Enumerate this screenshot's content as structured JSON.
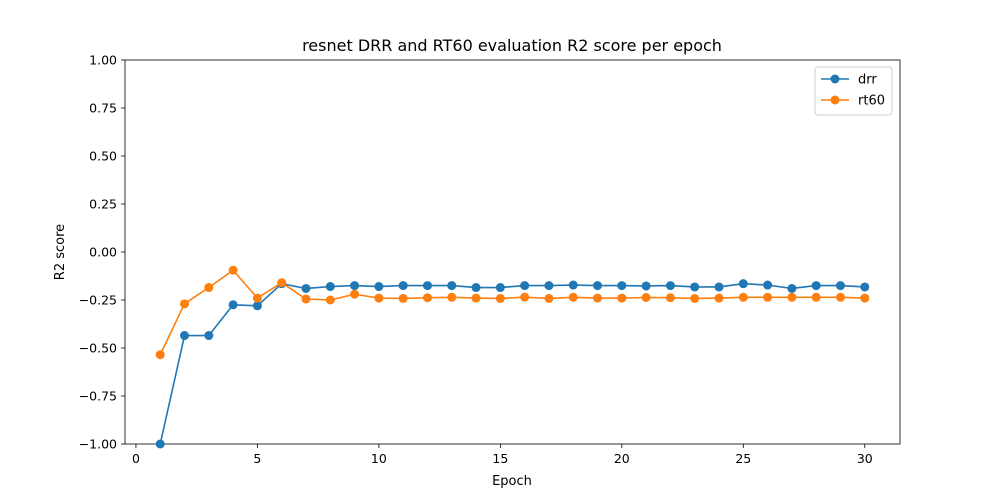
{
  "chart_data": {
    "type": "line",
    "title": "resnet DRR and RT60 evaluation R2 score per epoch",
    "xlabel": "Epoch",
    "ylabel": "R2 score",
    "xlim": [
      -0.45,
      31.45
    ],
    "ylim": [
      -1.0,
      1.0
    ],
    "xticks": [
      0,
      5,
      10,
      15,
      20,
      25,
      30
    ],
    "xtick_labels": [
      "0",
      "5",
      "10",
      "15",
      "20",
      "25",
      "30"
    ],
    "yticks": [
      -1.0,
      -0.75,
      -0.5,
      -0.25,
      0.0,
      0.25,
      0.5,
      0.75,
      1.0
    ],
    "ytick_labels": [
      "−1.00",
      "−0.75",
      "−0.50",
      "−0.25",
      "0.00",
      "0.25",
      "0.50",
      "0.75",
      "1.00"
    ],
    "grid": false,
    "legend_position": "top-right",
    "x": [
      1,
      2,
      3,
      4,
      5,
      6,
      7,
      8,
      9,
      10,
      11,
      12,
      13,
      14,
      15,
      16,
      17,
      18,
      19,
      20,
      21,
      22,
      23,
      24,
      25,
      26,
      27,
      28,
      29,
      30
    ],
    "series": [
      {
        "name": "drr",
        "color": "#1f77b4",
        "values": [
          -1.0,
          -0.435,
          -0.435,
          -0.275,
          -0.28,
          -0.165,
          -0.19,
          -0.18,
          -0.175,
          -0.18,
          -0.175,
          -0.175,
          -0.175,
          -0.185,
          -0.185,
          -0.175,
          -0.175,
          -0.172,
          -0.175,
          -0.175,
          -0.177,
          -0.175,
          -0.182,
          -0.182,
          -0.165,
          -0.172,
          -0.19,
          -0.175,
          -0.175,
          -0.182
        ]
      },
      {
        "name": "rt60",
        "color": "#ff7f0e",
        "values": [
          -0.535,
          -0.27,
          -0.185,
          -0.095,
          -0.24,
          -0.16,
          -0.245,
          -0.25,
          -0.22,
          -0.24,
          -0.242,
          -0.238,
          -0.236,
          -0.24,
          -0.242,
          -0.235,
          -0.242,
          -0.236,
          -0.24,
          -0.24,
          -0.237,
          -0.238,
          -0.242,
          -0.24,
          -0.236,
          -0.236,
          -0.236,
          -0.236,
          -0.236,
          -0.24
        ]
      }
    ]
  }
}
